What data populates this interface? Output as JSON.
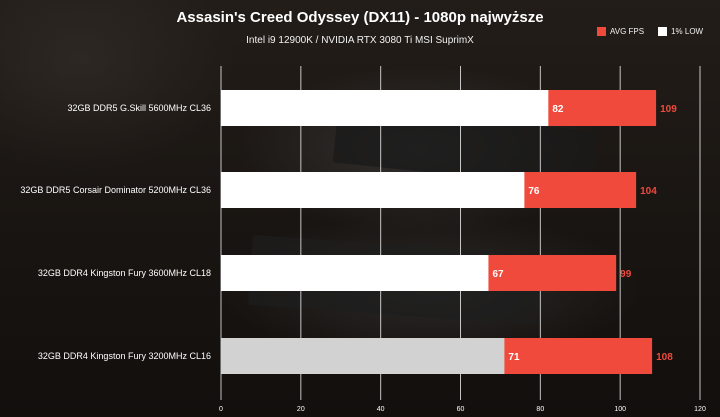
{
  "chart_data": {
    "type": "bar",
    "orientation": "horizontal",
    "title": "Assasin's Creed Odyssey (DX11) - 1080p najwyższe",
    "subtitle": "Intel i9 12900K / NVIDIA RTX 3080 Ti MSI SuprimX",
    "categories": [
      "32GB DDR5 G.Skill 5600MHz CL36",
      "32GB DDR5 Corsair Dominator 5200MHz CL36",
      "32GB DDR4 Kingston Fury 3600MHz CL18",
      "32GB DDR4 Kingston Fury 3200MHz CL16"
    ],
    "series": [
      {
        "name": "AVG FPS",
        "values": [
          109,
          104,
          99,
          108
        ],
        "color": "#f04a3c"
      },
      {
        "name": "1% LOW",
        "values": [
          82,
          76,
          67,
          71
        ],
        "color": "#ffffff"
      }
    ],
    "xlim": [
      0,
      120
    ],
    "xticks": [
      0,
      20,
      40,
      60,
      80,
      100,
      120
    ],
    "legend_position": "top-right",
    "grid": "vertical",
    "highlighted_category_color": "#d2d2d2"
  }
}
